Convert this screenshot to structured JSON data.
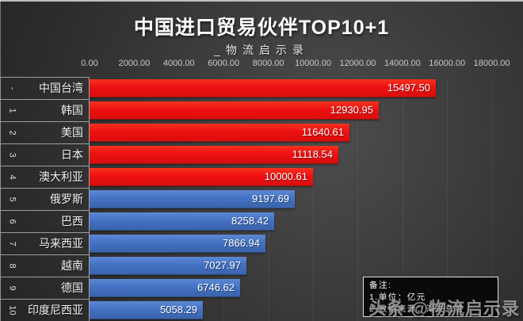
{
  "title": "中国进口贸易伙伴TOP10+1",
  "subtitle": "_物流启示录",
  "chart_data": {
    "type": "bar",
    "orientation": "horizontal",
    "title": "中国进口贸易伙伴TOP10+1",
    "subtitle": "_物流启示录",
    "unit": "亿元",
    "xlim": [
      0,
      18000
    ],
    "x_ticks": [
      "0.00",
      "2000.00",
      "4000.00",
      "6000.00",
      "8000.00",
      "10000.00",
      "12000.00",
      "14000.00",
      "16000.00",
      "18000.00"
    ],
    "grid": true,
    "legend": false,
    "rows": [
      {
        "rank": "-",
        "name": "中国台湾",
        "value": 15497.5,
        "label": "15497.50",
        "color": "red"
      },
      {
        "rank": "1",
        "name": "韩国",
        "value": 12930.95,
        "label": "12930.95",
        "color": "red"
      },
      {
        "rank": "2",
        "name": "美国",
        "value": 11640.61,
        "label": "11640.61",
        "color": "red"
      },
      {
        "rank": "3",
        "name": "日本",
        "value": 11118.54,
        "label": "11118.54",
        "color": "red"
      },
      {
        "rank": "4",
        "name": "澳大利亚",
        "value": 10000.61,
        "label": "10000.61",
        "color": "red"
      },
      {
        "rank": "5",
        "name": "俄罗斯",
        "value": 9197.69,
        "label": "9197.69",
        "color": "blue"
      },
      {
        "rank": "6",
        "name": "巴西",
        "value": 8258.42,
        "label": "8258.42",
        "color": "blue"
      },
      {
        "rank": "7",
        "name": "马来西亚",
        "value": 7866.94,
        "label": "7866.94",
        "color": "blue"
      },
      {
        "rank": "8",
        "name": "越南",
        "value": 7027.97,
        "label": "7027.97",
        "color": "blue"
      },
      {
        "rank": "9",
        "name": "德国",
        "value": 6746.62,
        "label": "6746.62",
        "color": "blue"
      },
      {
        "rank": "10",
        "name": "印度尼西亚",
        "value": 5058.29,
        "label": "5058.29",
        "color": "blue"
      }
    ],
    "colors": {
      "red": "#ee1111",
      "blue": "#4472c4"
    }
  },
  "note_box": {
    "heading": "备注:",
    "line1": "1.单位：亿元",
    "line2": "2.数据来源：海关总署"
  },
  "watermark": {
    "site": "头条",
    "handle": "@物流启示录"
  }
}
